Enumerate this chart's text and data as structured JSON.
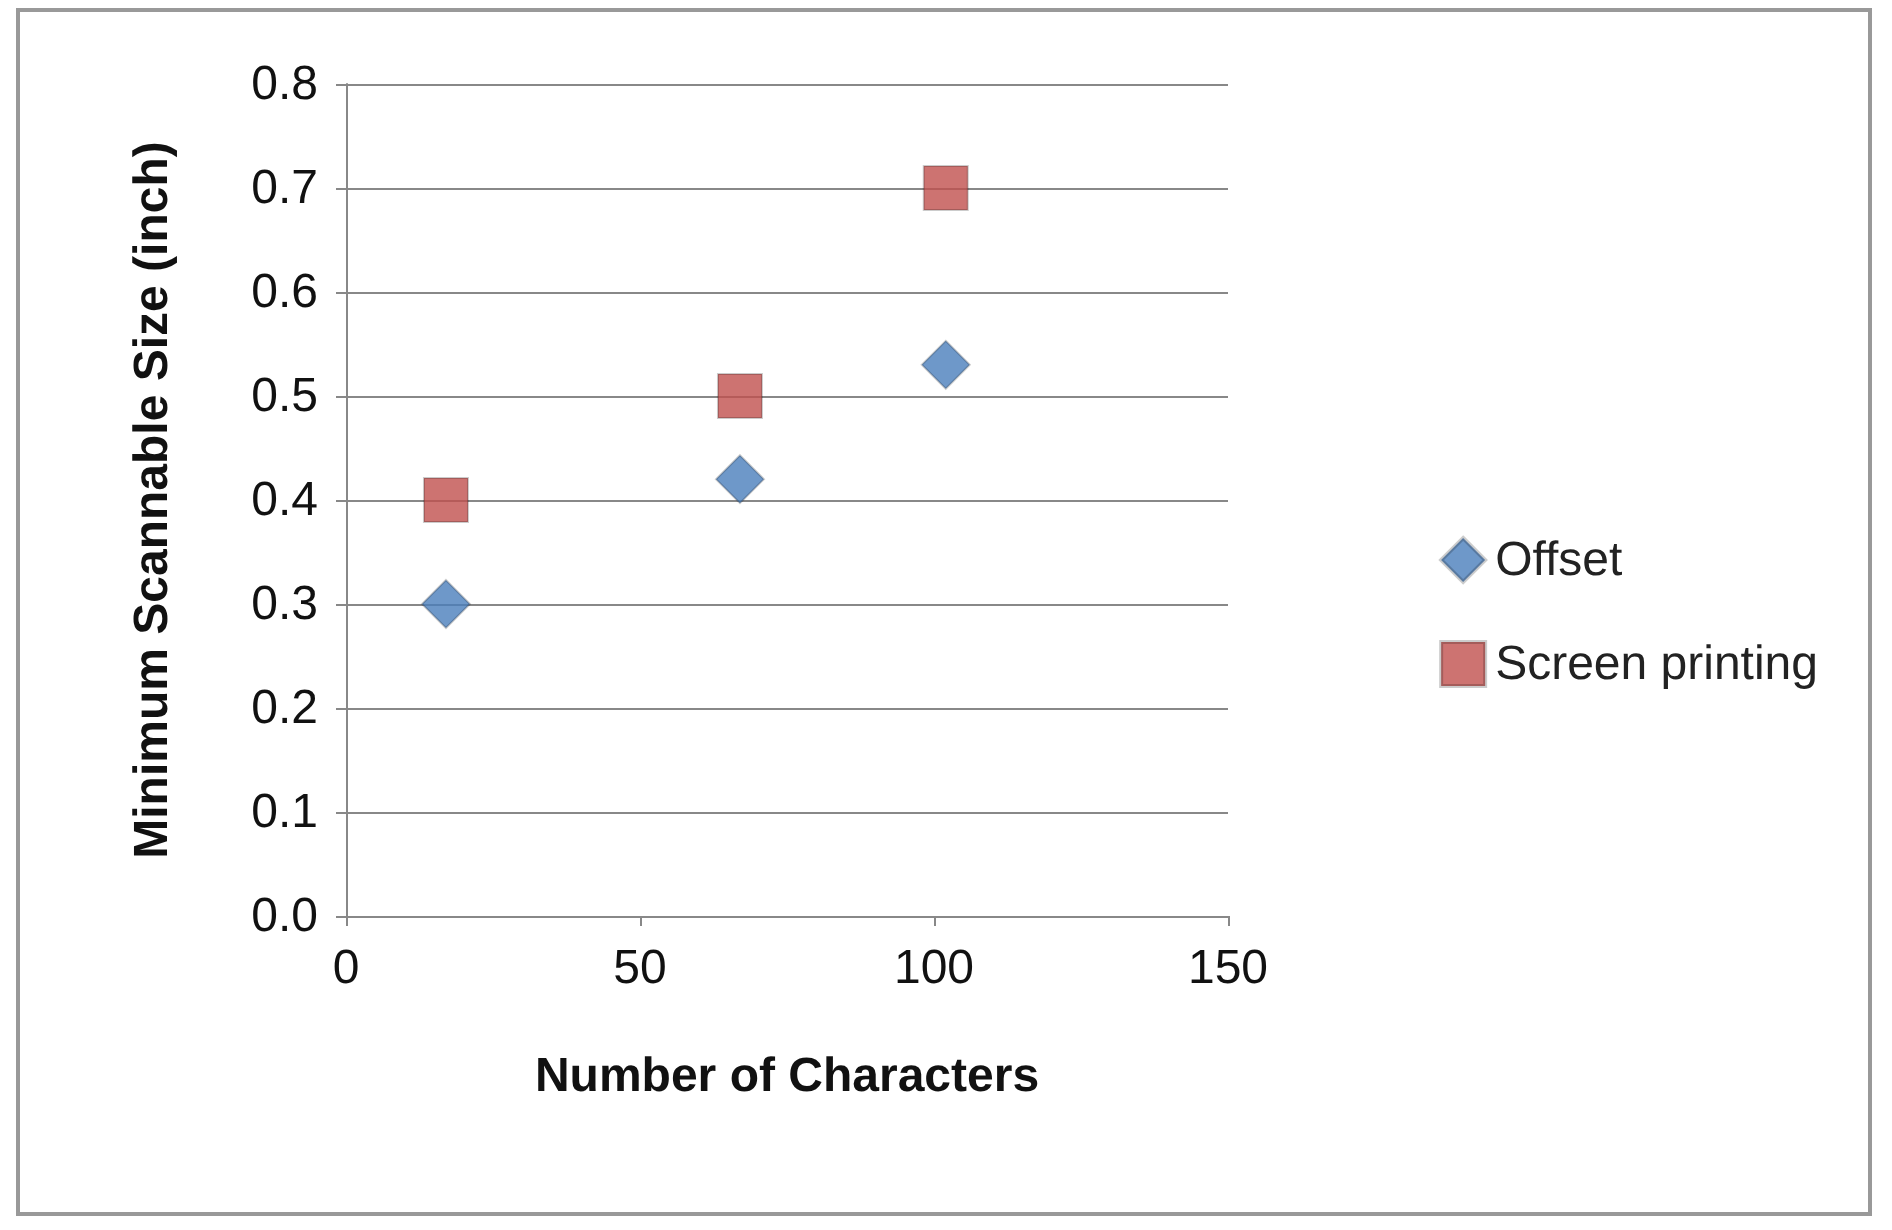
{
  "chart_data": {
    "type": "scatter",
    "xlabel": "Number of Characters",
    "ylabel": "Minimum Scannable Size (inch)",
    "series": [
      {
        "name": "Offset",
        "color": "#4a7ebb",
        "marker": "diamond",
        "x": [
          17,
          67,
          102
        ],
        "values": [
          0.3,
          0.42,
          0.53
        ]
      },
      {
        "name": "Screen printing",
        "color": "#c0504d",
        "marker": "square",
        "x": [
          17,
          67,
          102
        ],
        "values": [
          0.4,
          0.5,
          0.7
        ]
      }
    ],
    "xlim": [
      0,
      150
    ],
    "xticks": [
      0,
      50,
      100,
      150
    ],
    "ylim": [
      0,
      0.8
    ],
    "yticks": [
      {
        "value": 0,
        "label": "0.0"
      },
      0.1,
      0.2,
      0.3,
      0.4,
      0.5,
      0.6,
      0.7,
      0.8
    ],
    "grid": "y",
    "legend": "right"
  }
}
